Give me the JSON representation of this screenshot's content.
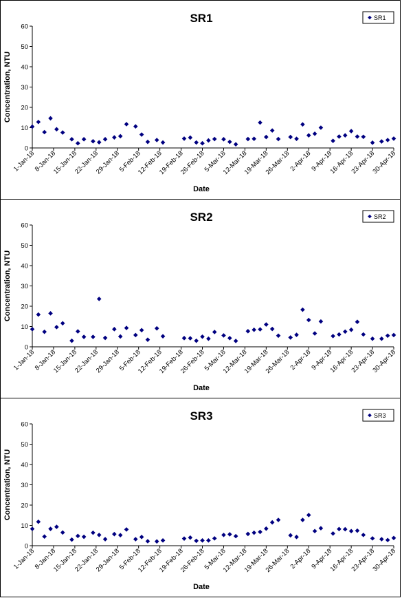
{
  "colors": {
    "marker": "#000080",
    "axis": "#000000"
  },
  "chart_data": [
    {
      "type": "scatter",
      "title": "SR1",
      "xlabel": "Date",
      "ylabel": "Concentration, NTU",
      "ylim": [
        0,
        60
      ],
      "yticks": [
        0,
        10,
        20,
        30,
        40,
        50,
        60
      ],
      "xlim": [
        "1-Jan-18",
        "30-Apr-18"
      ],
      "xtick_labels": [
        "1-Jan-18",
        "8-Jan-18",
        "15-Jan-18",
        "22-Jan-18",
        "29-Jan-18",
        "5-Feb-18",
        "12-Feb-18",
        "19-Feb-18",
        "26-Feb-18",
        "5-Mar-18",
        "12-Mar-18",
        "19-Mar-18",
        "26-Mar-18",
        "2-Apr-18",
        "9-Apr-18",
        "16-Apr-18",
        "23-Apr-18",
        "30-Apr-18"
      ],
      "legend": {
        "position": "top-right",
        "entries": [
          "SR1"
        ]
      },
      "grid": false,
      "series": [
        {
          "name": "SR1",
          "marker": "diamond",
          "points": [
            [
              "1-Jan-18",
              10.5
            ],
            [
              "3-Jan-18",
              12.8
            ],
            [
              "5-Jan-18",
              7.8
            ],
            [
              "7-Jan-18",
              14.6
            ],
            [
              "9-Jan-18",
              9.2
            ],
            [
              "11-Jan-18",
              7.6
            ],
            [
              "14-Jan-18",
              4.3
            ],
            [
              "16-Jan-18",
              2.3
            ],
            [
              "18-Jan-18",
              4.3
            ],
            [
              "21-Jan-18",
              3.3
            ],
            [
              "23-Jan-18",
              2.8
            ],
            [
              "25-Jan-18",
              4.3
            ],
            [
              "28-Jan-18",
              5.2
            ],
            [
              "30-Jan-18",
              5.8
            ],
            [
              "1-Feb-18",
              11.7
            ],
            [
              "4-Feb-18",
              10.6
            ],
            [
              "6-Feb-18",
              6.6
            ],
            [
              "8-Feb-18",
              3.0
            ],
            [
              "11-Feb-18",
              3.9
            ],
            [
              "13-Feb-18",
              2.7
            ],
            [
              "20-Feb-18",
              4.6
            ],
            [
              "22-Feb-18",
              5.1
            ],
            [
              "24-Feb-18",
              2.7
            ],
            [
              "26-Feb-18",
              2.3
            ],
            [
              "28-Feb-18",
              3.7
            ],
            [
              "2-Mar-18",
              4.4
            ],
            [
              "5-Mar-18",
              4.3
            ],
            [
              "7-Mar-18",
              3.0
            ],
            [
              "9-Mar-18",
              1.8
            ],
            [
              "13-Mar-18",
              4.4
            ],
            [
              "15-Mar-18",
              4.5
            ],
            [
              "17-Mar-18",
              12.5
            ],
            [
              "19-Mar-18",
              5.4
            ],
            [
              "21-Mar-18",
              8.6
            ],
            [
              "23-Mar-18",
              4.4
            ],
            [
              "27-Mar-18",
              5.4
            ],
            [
              "29-Mar-18",
              4.5
            ],
            [
              "31-Mar-18",
              11.6
            ],
            [
              "2-Apr-18",
              6.2
            ],
            [
              "4-Apr-18",
              7.0
            ],
            [
              "6-Apr-18",
              10.0
            ],
            [
              "10-Apr-18",
              3.5
            ],
            [
              "12-Apr-18",
              5.6
            ],
            [
              "14-Apr-18",
              6.2
            ],
            [
              "16-Apr-18",
              8.3
            ],
            [
              "18-Apr-18",
              5.6
            ],
            [
              "20-Apr-18",
              5.5
            ],
            [
              "23-Apr-18",
              2.6
            ],
            [
              "26-Apr-18",
              3.2
            ],
            [
              "28-Apr-18",
              3.9
            ],
            [
              "30-Apr-18",
              4.6
            ]
          ]
        }
      ]
    },
    {
      "type": "scatter",
      "title": "SR2",
      "xlabel": "Date",
      "ylabel": "Concentration, NTU",
      "ylim": [
        0,
        60
      ],
      "yticks": [
        0,
        10,
        20,
        30,
        40,
        50,
        60
      ],
      "xlim": [
        "1-Jan-18",
        "30-Apr-18"
      ],
      "xtick_labels": [
        "1-Jan-18",
        "8-Jan-18",
        "15-Jan-18",
        "22-Jan-18",
        "29-Jan-18",
        "5-Feb-18",
        "12-Feb-18",
        "19-Feb-18",
        "26-Feb-18",
        "5-Mar-18",
        "12-Mar-18",
        "19-Mar-18",
        "26-Mar-18",
        "2-Apr-18",
        "9-Apr-18",
        "16-Apr-18",
        "23-Apr-18",
        "30-Apr-18"
      ],
      "legend": {
        "position": "top-right",
        "entries": [
          "SR2"
        ]
      },
      "grid": false,
      "series": [
        {
          "name": "SR2",
          "marker": "diamond",
          "points": [
            [
              "1-Jan-18",
              8.7
            ],
            [
              "3-Jan-18",
              15.9
            ],
            [
              "5-Jan-18",
              7.4
            ],
            [
              "7-Jan-18",
              16.5
            ],
            [
              "9-Jan-18",
              9.7
            ],
            [
              "11-Jan-18",
              11.6
            ],
            [
              "14-Jan-18",
              3.0
            ],
            [
              "16-Jan-18",
              7.6
            ],
            [
              "18-Jan-18",
              4.9
            ],
            [
              "21-Jan-18",
              4.9
            ],
            [
              "23-Jan-18",
              23.6
            ],
            [
              "25-Jan-18",
              4.4
            ],
            [
              "28-Jan-18",
              8.7
            ],
            [
              "30-Jan-18",
              5.1
            ],
            [
              "1-Feb-18",
              9.3
            ],
            [
              "4-Feb-18",
              5.8
            ],
            [
              "6-Feb-18",
              8.2
            ],
            [
              "8-Feb-18",
              3.5
            ],
            [
              "11-Feb-18",
              9.1
            ],
            [
              "13-Feb-18",
              5.2
            ],
            [
              "20-Feb-18",
              4.3
            ],
            [
              "22-Feb-18",
              4.2
            ],
            [
              "24-Feb-18",
              3.0
            ],
            [
              "26-Feb-18",
              5.0
            ],
            [
              "28-Feb-18",
              4.0
            ],
            [
              "2-Mar-18",
              7.3
            ],
            [
              "5-Mar-18",
              5.6
            ],
            [
              "7-Mar-18",
              4.3
            ],
            [
              "9-Mar-18",
              2.9
            ],
            [
              "13-Mar-18",
              7.7
            ],
            [
              "15-Mar-18",
              8.4
            ],
            [
              "17-Mar-18",
              8.6
            ],
            [
              "19-Mar-18",
              11.0
            ],
            [
              "21-Mar-18",
              8.8
            ],
            [
              "23-Mar-18",
              5.5
            ],
            [
              "27-Mar-18",
              4.6
            ],
            [
              "29-Mar-18",
              5.9
            ],
            [
              "31-Mar-18",
              18.3
            ],
            [
              "2-Apr-18",
              13.2
            ],
            [
              "4-Apr-18",
              6.6
            ],
            [
              "6-Apr-18",
              12.5
            ],
            [
              "10-Apr-18",
              5.3
            ],
            [
              "12-Apr-18",
              6.1
            ],
            [
              "14-Apr-18",
              7.5
            ],
            [
              "16-Apr-18",
              8.4
            ],
            [
              "18-Apr-18",
              12.3
            ],
            [
              "20-Apr-18",
              6.1
            ],
            [
              "23-Apr-18",
              4.0
            ],
            [
              "26-Apr-18",
              4.0
            ],
            [
              "28-Apr-18",
              5.5
            ],
            [
              "30-Apr-18",
              5.8
            ]
          ]
        }
      ]
    },
    {
      "type": "scatter",
      "title": "SR3",
      "xlabel": "Date",
      "ylabel": "Concentration, NTU",
      "ylim": [
        0,
        60
      ],
      "yticks": [
        0,
        10,
        20,
        30,
        40,
        50,
        60
      ],
      "xlim": [
        "1-Jan-18",
        "30-Apr-18"
      ],
      "xtick_labels": [
        "1-Jan-18",
        "8-Jan-18",
        "15-Jan-18",
        "22-Jan-18",
        "29-Jan-18",
        "5-Feb-18",
        "12-Feb-18",
        "19-Feb-18",
        "26-Feb-18",
        "5-Mar-18",
        "12-Mar-18",
        "19-Mar-18",
        "26-Mar-18",
        "2-Apr-18",
        "9-Apr-18",
        "16-Apr-18",
        "23-Apr-18",
        "30-Apr-18"
      ],
      "legend": {
        "position": "top-right",
        "entries": [
          "SR3"
        ]
      },
      "grid": false,
      "series": [
        {
          "name": "SR3",
          "marker": "diamond",
          "points": [
            [
              "1-Jan-18",
              8.3
            ],
            [
              "3-Jan-18",
              11.8
            ],
            [
              "5-Jan-18",
              4.5
            ],
            [
              "7-Jan-18",
              8.3
            ],
            [
              "9-Jan-18",
              9.3
            ],
            [
              "11-Jan-18",
              6.5
            ],
            [
              "14-Jan-18",
              3.0
            ],
            [
              "16-Jan-18",
              4.8
            ],
            [
              "18-Jan-18",
              4.4
            ],
            [
              "21-Jan-18",
              6.4
            ],
            [
              "23-Jan-18",
              5.3
            ],
            [
              "25-Jan-18",
              3.2
            ],
            [
              "28-Jan-18",
              5.7
            ],
            [
              "30-Jan-18",
              5.2
            ],
            [
              "1-Feb-18",
              8.0
            ],
            [
              "4-Feb-18",
              3.2
            ],
            [
              "6-Feb-18",
              4.3
            ],
            [
              "8-Feb-18",
              2.2
            ],
            [
              "11-Feb-18",
              2.1
            ],
            [
              "13-Feb-18",
              2.6
            ],
            [
              "20-Feb-18",
              3.5
            ],
            [
              "22-Feb-18",
              4.0
            ],
            [
              "24-Feb-18",
              2.4
            ],
            [
              "26-Feb-18",
              2.6
            ],
            [
              "28-Feb-18",
              2.6
            ],
            [
              "2-Mar-18",
              3.6
            ],
            [
              "5-Mar-18",
              5.3
            ],
            [
              "7-Mar-18",
              5.6
            ],
            [
              "9-Mar-18",
              4.7
            ],
            [
              "13-Mar-18",
              5.8
            ],
            [
              "15-Mar-18",
              6.4
            ],
            [
              "17-Mar-18",
              6.8
            ],
            [
              "19-Mar-18",
              8.4
            ],
            [
              "21-Mar-18",
              11.5
            ],
            [
              "23-Mar-18",
              12.7
            ],
            [
              "27-Mar-18",
              5.1
            ],
            [
              "29-Mar-18",
              4.3
            ],
            [
              "31-Mar-18",
              12.7
            ],
            [
              "2-Apr-18",
              15.1
            ],
            [
              "4-Apr-18",
              7.2
            ],
            [
              "6-Apr-18",
              8.6
            ],
            [
              "10-Apr-18",
              6.0
            ],
            [
              "12-Apr-18",
              8.2
            ],
            [
              "14-Apr-18",
              8.1
            ],
            [
              "16-Apr-18",
              7.2
            ],
            [
              "18-Apr-18",
              7.4
            ],
            [
              "20-Apr-18",
              5.3
            ],
            [
              "23-Apr-18",
              3.6
            ],
            [
              "26-Apr-18",
              3.2
            ],
            [
              "28-Apr-18",
              2.8
            ],
            [
              "30-Apr-18",
              3.8
            ]
          ]
        }
      ]
    }
  ]
}
